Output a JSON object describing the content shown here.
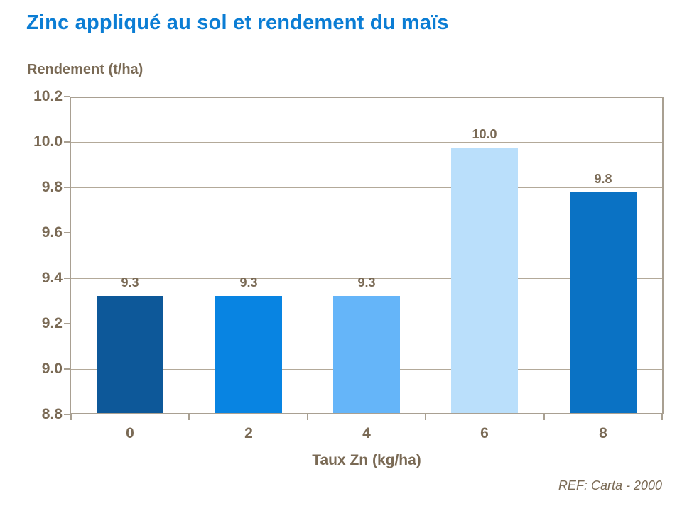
{
  "title": "Zinc appliqué au sol et rendement du maïs",
  "y_axis_title": "Rendement (t/ha)",
  "x_axis_title": "Taux Zn (kg/ha)",
  "footer": "REF: Carta - 2000",
  "colors": {
    "title_text": "#0b7dd4",
    "body_text": "#7a6a55",
    "axis_line": "#a9a092",
    "gridline": "#b3a999",
    "background": "#ffffff",
    "bars": [
      "#0d5899",
      "#0884e2",
      "#65b5f9",
      "#badffb",
      "#0a72c4"
    ]
  },
  "chart_data": {
    "type": "bar",
    "title": "Zinc appliqué au sol et rendement du maïs",
    "xlabel": "Taux Zn (kg/ha)",
    "ylabel": "Rendement (t/ha)",
    "categories": [
      "0",
      "2",
      "4",
      "6",
      "8"
    ],
    "values": [
      9.32,
      9.32,
      9.32,
      9.98,
      9.78
    ],
    "value_labels": [
      "9.3",
      "9.3",
      "9.3",
      "10.0",
      "9.8"
    ],
    "ylim": [
      8.8,
      10.2
    ],
    "ytick_step": 0.2,
    "ytick_labels": [
      "10.2",
      "10.0",
      "9.8",
      "9.6",
      "9.4",
      "9.2",
      "9.0",
      "8.8"
    ],
    "grid": true,
    "legend": false,
    "source": "REF: Carta - 2000"
  }
}
